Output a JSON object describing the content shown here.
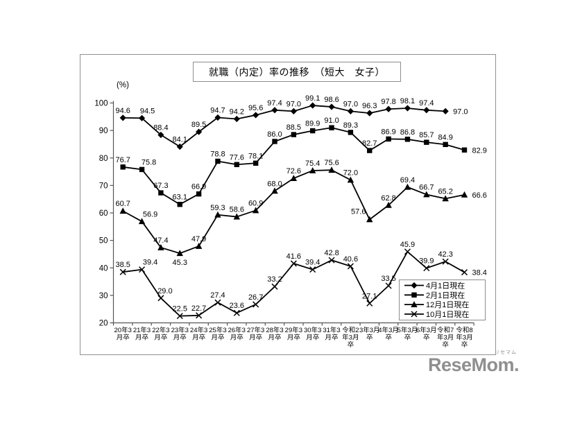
{
  "chart_data": {
    "type": "line",
    "title": "就職（内定）率の推移　（短大　女子）",
    "y_axis_label": "(%)",
    "y_min": 20,
    "y_max": 100,
    "y_ticks": [
      100,
      90,
      80,
      70,
      60,
      50,
      40,
      30,
      20
    ],
    "grid": false,
    "legend_position": "inside-bottom-right",
    "line_color": "#000000",
    "categories": [
      "20年3月卒",
      "21年3月卒",
      "22年3月卒",
      "23年3月卒",
      "24年3月卒",
      "25年3月卒",
      "26年3月卒",
      "27年3月卒",
      "28年3月卒",
      "29年3月卒",
      "30年3月卒",
      "31年3月卒",
      "令和2年3月卒",
      "3年3月卒",
      "4年3月卒",
      "5年3月卒",
      "6年3月卒",
      "令和7年3月卒",
      "令和8年3月卒"
    ],
    "categories_display": [
      [
        "20年3",
        "月卒"
      ],
      [
        "21年3",
        "月卒"
      ],
      [
        "22年3",
        "月卒"
      ],
      [
        "23年3",
        "月卒"
      ],
      [
        "24年3",
        "月卒"
      ],
      [
        "25年3",
        "月卒"
      ],
      [
        "26年3",
        "月卒"
      ],
      [
        "27年3",
        "月卒"
      ],
      [
        "28年3",
        "月卒"
      ],
      [
        "29年3",
        "月卒"
      ],
      [
        "30年3",
        "月卒"
      ],
      [
        "31年3",
        "月卒"
      ],
      [
        "令和2",
        "年3月",
        "卒"
      ],
      [
        "3年3月",
        "卒"
      ],
      [
        "4年3月",
        "卒"
      ],
      [
        "5年3月",
        "卒"
      ],
      [
        "6年3月",
        "卒"
      ],
      [
        "令和7",
        "年3月",
        "卒"
      ],
      [
        "令和8",
        "年3月",
        "卒"
      ]
    ],
    "series": [
      {
        "name": "4月1日現在",
        "marker": "diamond",
        "values": [
          94.6,
          94.5,
          88.4,
          84.1,
          89.5,
          94.7,
          94.2,
          95.6,
          97.4,
          97.0,
          99.1,
          98.6,
          97.0,
          96.3,
          97.8,
          98.1,
          97.4,
          97.0
        ]
      },
      {
        "name": "2月1日現在",
        "marker": "square",
        "values": [
          76.7,
          75.8,
          67.3,
          63.1,
          66.9,
          78.8,
          77.6,
          78.1,
          86.0,
          88.5,
          89.9,
          91.0,
          89.3,
          82.7,
          86.9,
          86.8,
          85.7,
          84.9,
          82.9
        ]
      },
      {
        "name": "12月1日現在",
        "marker": "triangle",
        "values": [
          60.7,
          56.9,
          47.4,
          45.3,
          47.9,
          59.3,
          58.6,
          60.9,
          68.0,
          72.6,
          75.4,
          75.6,
          72.0,
          57.6,
          62.8,
          69.4,
          66.7,
          65.2,
          66.6
        ]
      },
      {
        "name": "10月1日現在",
        "marker": "x",
        "values": [
          38.5,
          39.4,
          29.0,
          22.5,
          22.7,
          27.4,
          23.6,
          26.7,
          33.2,
          41.6,
          39.4,
          42.8,
          40.6,
          27.1,
          33.5,
          45.9,
          39.9,
          42.3,
          38.4
        ]
      }
    ]
  },
  "watermark": {
    "text": "ReseMom.",
    "ruby": "リセマム",
    "color": "#8f8f8f"
  }
}
